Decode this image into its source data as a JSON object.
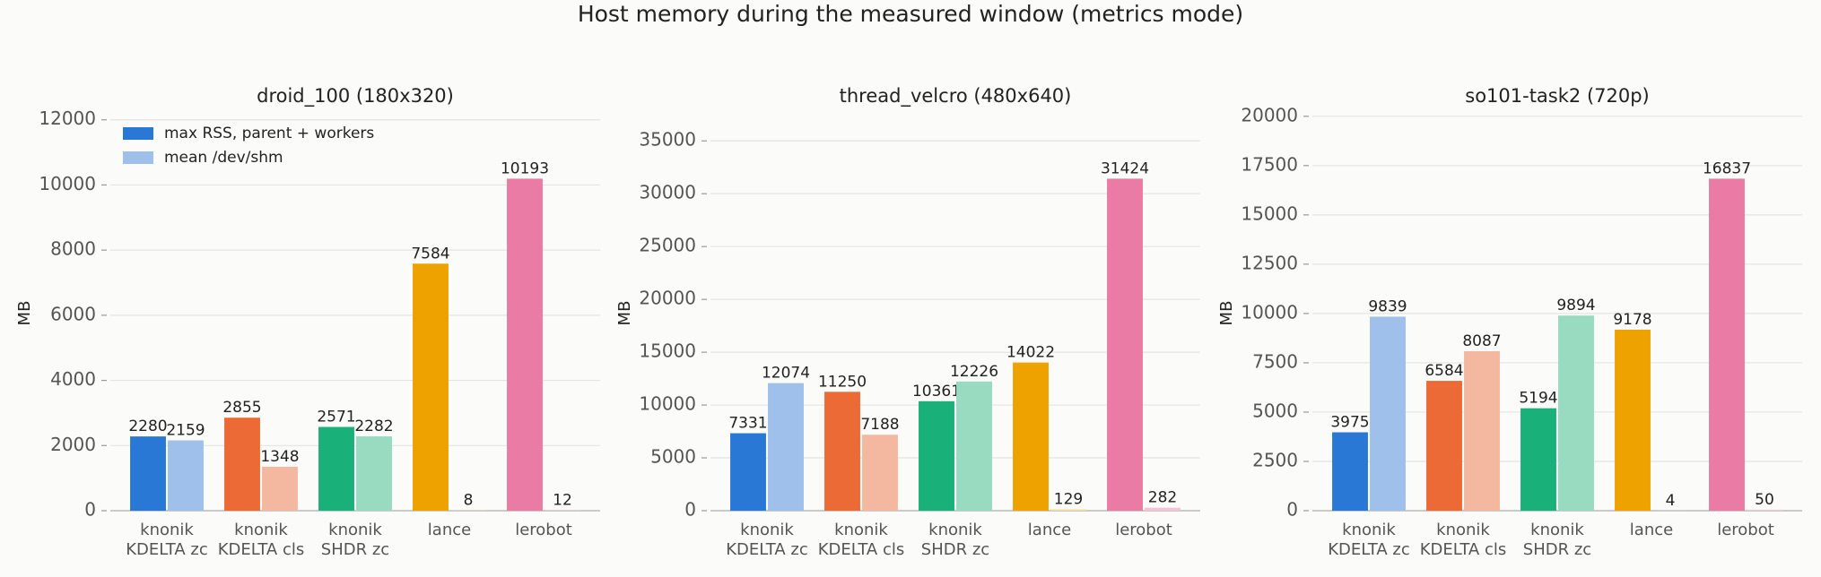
{
  "title": "Host memory during the measured window  (metrics mode)",
  "chart_data": [
    {
      "type": "bar",
      "title": "droid_100 (180x320)",
      "ylabel": "MB",
      "categories": [
        "knonik\nKDELTA zc",
        "knonik\nKDELTA cls",
        "knonik\nSHDR zc",
        "lance",
        "lerobot"
      ],
      "series": [
        {
          "name": "max RSS, parent + workers",
          "color": "#2a78d6",
          "bar_colors": [
            "#2a78d6",
            "#eb6a35",
            "#1ab07a",
            "#eda200",
            "#e97ba5"
          ],
          "values": [
            2280,
            2855,
            2571,
            7584,
            10193
          ]
        },
        {
          "name": "mean /dev/shm",
          "color": "#9fc0ea",
          "bar_colors": [
            "#9fc0ea",
            "#f4b8a0",
            "#98dbc0",
            "#f7dc99",
            "#f5c3d6"
          ],
          "values": [
            2159,
            1348,
            2282,
            8,
            12
          ]
        }
      ],
      "ylim": [
        0,
        12130
      ],
      "yticks": [
        0,
        2000,
        4000,
        6000,
        8000,
        10000,
        12000
      ],
      "grid": true,
      "legend": "upper left"
    },
    {
      "type": "bar",
      "title": "thread_velcro (480x640)",
      "ylabel": "MB",
      "categories": [
        "knonik\nKDELTA zc",
        "knonik\nKDELTA cls",
        "knonik\nSHDR zc",
        "lance",
        "lerobot"
      ],
      "series": [
        {
          "color": "#2a78d6",
          "bar_colors": [
            "#2a78d6",
            "#eb6a35",
            "#1ab07a",
            "#eda200",
            "#e97ba5"
          ],
          "values": [
            7331,
            11250,
            10361,
            14022,
            31424
          ]
        },
        {
          "color": "#9fc0ea",
          "bar_colors": [
            "#9fc0ea",
            "#f4b8a0",
            "#98dbc0",
            "#f7dc99",
            "#f5c3d6"
          ],
          "values": [
            12074,
            7188,
            12226,
            129,
            282
          ]
        }
      ],
      "ylim": [
        0,
        37395
      ],
      "yticks": [
        0,
        5000,
        10000,
        15000,
        20000,
        25000,
        30000,
        35000
      ],
      "grid": true
    },
    {
      "type": "bar",
      "title": "so101-task2 (720p)",
      "ylabel": "MB",
      "categories": [
        "knonik\nKDELTA zc",
        "knonik\nKDELTA cls",
        "knonik\nSHDR zc",
        "lance",
        "lerobot"
      ],
      "series": [
        {
          "color": "#2a78d6",
          "bar_colors": [
            "#2a78d6",
            "#eb6a35",
            "#1ab07a",
            "#eda200",
            "#e97ba5"
          ],
          "values": [
            3975,
            6584,
            5194,
            9178,
            16837
          ]
        },
        {
          "color": "#9fc0ea",
          "bar_colors": [
            "#9fc0ea",
            "#f4b8a0",
            "#98dbc0",
            "#f7dc99",
            "#f5c3d6"
          ],
          "values": [
            9839,
            8087,
            9894,
            4,
            50
          ]
        }
      ],
      "ylim": [
        0,
        20036
      ],
      "yticks": [
        0,
        2500,
        5000,
        7500,
        10000,
        12500,
        15000,
        17500,
        20000
      ],
      "grid": true
    }
  ]
}
